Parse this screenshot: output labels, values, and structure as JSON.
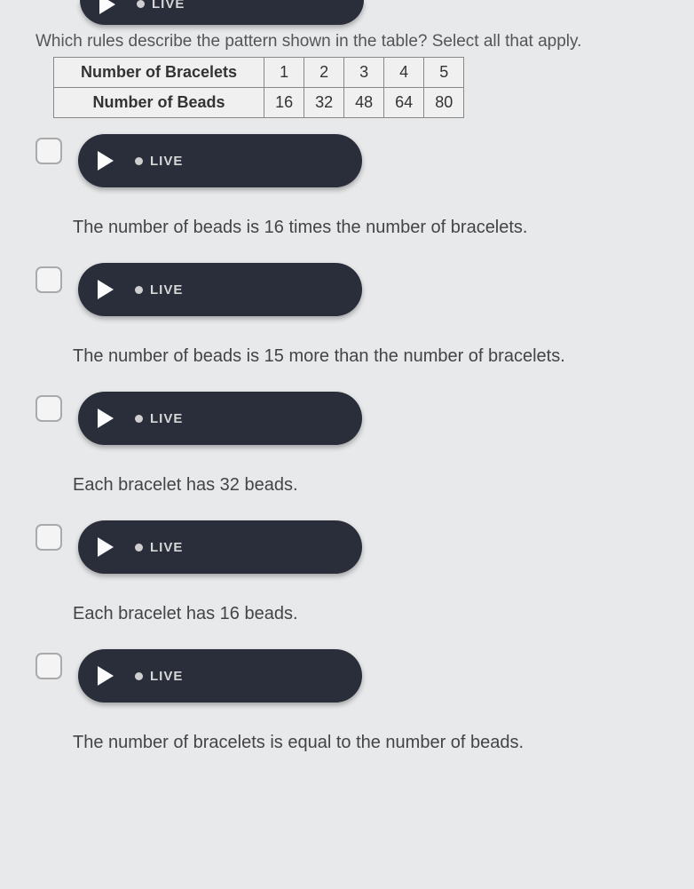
{
  "question": "Which rules describe the pattern shown in the table? Select all that apply.",
  "table": {
    "row1_label": "Number of Bracelets",
    "row2_label": "Number of Beads",
    "r1c1": "1",
    "r1c2": "2",
    "r1c3": "3",
    "r1c4": "4",
    "r1c5": "5",
    "r2c1": "16",
    "r2c2": "32",
    "r2c3": "48",
    "r2c4": "64",
    "r2c5": "80"
  },
  "live_label": "LIVE",
  "options": {
    "o1": "The number of beads is 16 times the number of bracelets.",
    "o2": "The number of beads is 15 more than the number of bracelets.",
    "o3": "Each bracelet has 32 beads.",
    "o4": "Each bracelet has 16 beads.",
    "o5": "The number of bracelets is equal to the number of beads."
  },
  "colors": {
    "pill_bg": "#2a2e3a",
    "page_bg": "#e8e9eb",
    "text": "#444",
    "border": "#888"
  }
}
